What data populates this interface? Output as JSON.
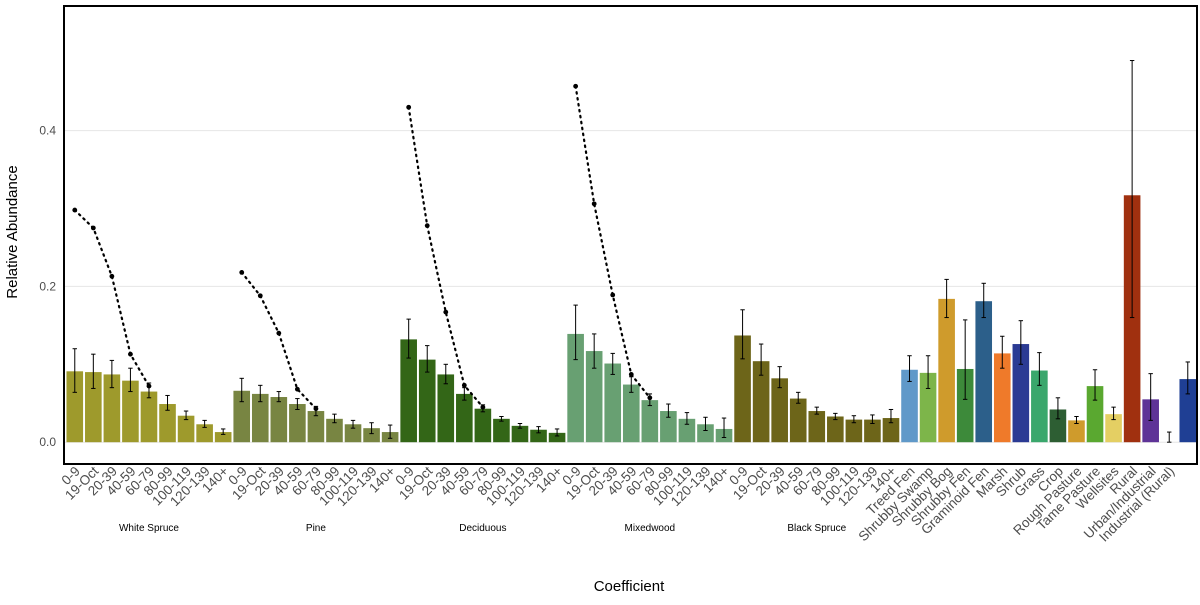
{
  "chart_data": {
    "type": "bar",
    "xlabel": "Coefficient",
    "ylabel": "Relative Abundance",
    "ylim": [
      -0.028,
      0.56
    ],
    "yticks": [
      {
        "value": 0.0,
        "label": "0.0"
      },
      {
        "value": 0.2,
        "label": "0.2"
      },
      {
        "value": 0.4,
        "label": "0.4"
      }
    ],
    "grid": "horizontal-major",
    "legend": "none",
    "age_classes": [
      "0-9",
      "19-Oct",
      "20-39",
      "40-59",
      "60-79",
      "80-99",
      "100-119",
      "120-139",
      "140+"
    ],
    "stand_groups": [
      {
        "name": "White Spruce",
        "color": "#9e9a2c",
        "values": [
          0.091,
          0.09,
          0.087,
          0.079,
          0.065,
          0.049,
          0.034,
          0.023,
          0.013
        ],
        "lower": [
          0.064,
          0.069,
          0.07,
          0.065,
          0.057,
          0.041,
          0.029,
          0.019,
          0.01
        ],
        "upper": [
          0.12,
          0.113,
          0.105,
          0.095,
          0.076,
          0.06,
          0.04,
          0.028,
          0.017
        ],
        "trend": [
          0.298,
          0.275,
          0.213,
          0.113,
          0.072,
          null,
          null,
          null,
          null
        ]
      },
      {
        "name": "Pine",
        "color": "#788542",
        "values": [
          0.066,
          0.062,
          0.058,
          0.049,
          0.04,
          0.03,
          0.023,
          0.018,
          0.013
        ],
        "lower": [
          0.052,
          0.052,
          0.052,
          0.042,
          0.034,
          0.025,
          0.018,
          0.011,
          0.005
        ],
        "upper": [
          0.082,
          0.073,
          0.065,
          0.056,
          0.046,
          0.036,
          0.028,
          0.025,
          0.022
        ],
        "trend": [
          0.218,
          0.188,
          0.14,
          0.068,
          0.043,
          null,
          null,
          null,
          null
        ]
      },
      {
        "name": "Deciduous",
        "color": "#336617",
        "values": [
          0.132,
          0.106,
          0.087,
          0.062,
          0.043,
          0.03,
          0.021,
          0.016,
          0.012
        ],
        "lower": [
          0.108,
          0.09,
          0.075,
          0.054,
          0.039,
          0.027,
          0.018,
          0.012,
          0.008
        ],
        "upper": [
          0.158,
          0.124,
          0.1,
          0.07,
          0.048,
          0.033,
          0.024,
          0.02,
          0.017
        ],
        "trend": [
          0.43,
          0.278,
          0.167,
          0.073,
          0.045,
          null,
          null,
          null,
          null
        ]
      },
      {
        "name": "Mixedwood",
        "color": "#68a072",
        "values": [
          0.139,
          0.117,
          0.101,
          0.074,
          0.054,
          0.04,
          0.03,
          0.023,
          0.017
        ],
        "lower": [
          0.106,
          0.095,
          0.087,
          0.064,
          0.047,
          0.032,
          0.023,
          0.015,
          0.006
        ],
        "upper": [
          0.176,
          0.139,
          0.114,
          0.084,
          0.062,
          0.049,
          0.038,
          0.032,
          0.031
        ],
        "trend": [
          0.457,
          0.306,
          0.189,
          0.087,
          0.057,
          null,
          null,
          null,
          null
        ]
      },
      {
        "name": "Black Spruce",
        "color": "#6d6519",
        "values": [
          0.137,
          0.104,
          0.082,
          0.056,
          0.04,
          0.033,
          0.029,
          0.029,
          0.031
        ],
        "lower": [
          0.107,
          0.086,
          0.07,
          0.05,
          0.036,
          0.029,
          0.025,
          0.024,
          0.025
        ],
        "upper": [
          0.17,
          0.126,
          0.097,
          0.064,
          0.045,
          0.037,
          0.034,
          0.035,
          0.042
        ],
        "trend": [
          null,
          null,
          null,
          null,
          null,
          null,
          null,
          null,
          null
        ]
      }
    ],
    "other_bars": [
      {
        "label": "Treed Fen",
        "value": 0.093,
        "lower": 0.078,
        "upper": 0.111,
        "color": "#6099c9"
      },
      {
        "label": "Shrubby Swamp",
        "value": 0.089,
        "lower": 0.069,
        "upper": 0.111,
        "color": "#7db54a"
      },
      {
        "label": "Shrubby Bog",
        "value": 0.184,
        "lower": 0.16,
        "upper": 0.209,
        "color": "#cf9b2c"
      },
      {
        "label": "Shrubby Fen",
        "value": 0.094,
        "lower": 0.055,
        "upper": 0.157,
        "color": "#3d8a3a"
      },
      {
        "label": "Graminoid Fen",
        "value": 0.181,
        "lower": 0.16,
        "upper": 0.204,
        "color": "#2c5f8a"
      },
      {
        "label": "Marsh",
        "value": 0.114,
        "lower": 0.095,
        "upper": 0.136,
        "color": "#ef7a2a"
      },
      {
        "label": "Shrub",
        "value": 0.126,
        "lower": 0.1,
        "upper": 0.156,
        "color": "#2b3b94"
      },
      {
        "label": "Grass",
        "value": 0.092,
        "lower": 0.073,
        "upper": 0.115,
        "color": "#3aa76c"
      },
      {
        "label": "Crop",
        "value": 0.042,
        "lower": 0.03,
        "upper": 0.057,
        "color": "#2d5e33"
      },
      {
        "label": "Rough Pasture",
        "value": 0.028,
        "lower": 0.024,
        "upper": 0.033,
        "color": "#cf9b2c"
      },
      {
        "label": "Tame Pasture",
        "value": 0.072,
        "lower": 0.054,
        "upper": 0.093,
        "color": "#5aa830"
      },
      {
        "label": "Wellsites",
        "value": 0.036,
        "lower": 0.029,
        "upper": 0.045,
        "color": "#e4cf63"
      },
      {
        "label": "Rural",
        "value": 0.317,
        "lower": 0.16,
        "upper": 0.49,
        "color": "#a0300f"
      },
      {
        "label": "Urban/Industrial",
        "value": 0.055,
        "lower": 0.028,
        "upper": 0.088,
        "color": "#5e3397"
      },
      {
        "label": "Industrial (Rural)",
        "value": 0.0,
        "lower": 0.0,
        "upper": 0.013,
        "color": "#888888"
      },
      {
        "label": "",
        "value": 0.081,
        "lower": 0.062,
        "upper": 0.103,
        "color": "#1f3f94"
      }
    ]
  }
}
